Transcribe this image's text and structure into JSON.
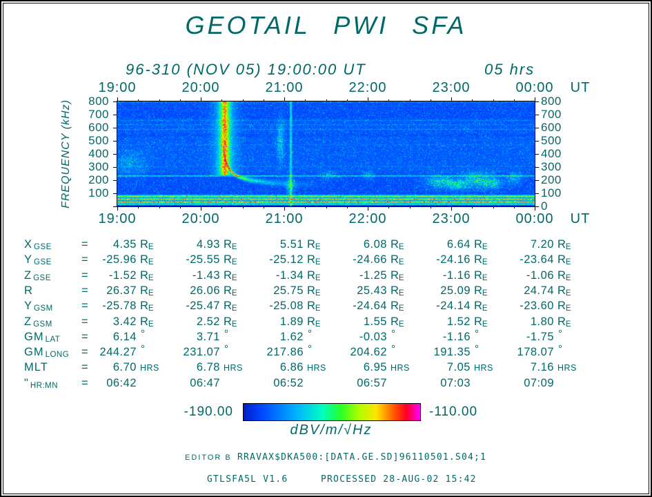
{
  "title": "GEOTAIL PWI SFA",
  "subtitle": {
    "date": "96-310 (NOV 05) 19:00:00 UT",
    "duration": "05 hrs"
  },
  "axes": {
    "time_ticks": [
      "19:00",
      "20:00",
      "21:00",
      "22:00",
      "23:00",
      "00:00"
    ],
    "time_unit": "UT",
    "freq_label": "FREQUENCY (kHz)",
    "freq_ticks_left": [
      "800",
      "700",
      "600",
      "500",
      "400",
      "300",
      "200",
      "100"
    ],
    "freq_ticks_right": [
      "800",
      "700",
      "600",
      "500",
      "400",
      "300",
      "200",
      "100",
      "0"
    ]
  },
  "ephemeris": {
    "unit_symbols": {
      "re_main": "R",
      "re_sub": "E",
      "deg": "°",
      "hrs": "HRS"
    },
    "rows": [
      {
        "label": "X",
        "sub": "GSE",
        "eq": "=",
        "unit": "re",
        "values": [
          "4.35",
          "4.93",
          "5.51",
          "6.08",
          "6.64",
          "7.20"
        ]
      },
      {
        "label": "Y",
        "sub": "GSE",
        "eq": "=",
        "unit": "re",
        "values": [
          "-25.96",
          "-25.55",
          "-25.12",
          "-24.66",
          "-24.16",
          "-23.64"
        ]
      },
      {
        "label": "Z",
        "sub": "GSE",
        "eq": "=",
        "unit": "re",
        "values": [
          "-1.52",
          "-1.43",
          "-1.34",
          "-1.25",
          "-1.16",
          "-1.06"
        ]
      },
      {
        "label": "R",
        "sub": "",
        "eq": "=",
        "unit": "re",
        "values": [
          "26.37",
          "26.06",
          "25.75",
          "25.43",
          "25.09",
          "24.74"
        ]
      },
      {
        "label": "Y",
        "sub": "GSM",
        "eq": "=",
        "unit": "re",
        "values": [
          "-25.78",
          "-25.47",
          "-25.08",
          "-24.64",
          "-24.14",
          "-23.60"
        ]
      },
      {
        "label": "Z",
        "sub": "GSM",
        "eq": "=",
        "unit": "re",
        "values": [
          "3.42",
          "2.52",
          "1.89",
          "1.55",
          "1.52",
          "1.80"
        ]
      },
      {
        "label": "GM",
        "sub": "LAT",
        "eq": "=",
        "unit": "deg",
        "values": [
          "6.14",
          "3.71",
          "1.62",
          "-0.03",
          "-1.16",
          "-1.75"
        ]
      },
      {
        "label": "GM",
        "sub": "LONG",
        "eq": "=",
        "unit": "deg",
        "values": [
          "244.27",
          "231.07",
          "217.86",
          "204.62",
          "191.35",
          "178.07"
        ]
      },
      {
        "label": "MLT",
        "sub": "",
        "eq": "=",
        "unit": "hrs",
        "values": [
          "6.70",
          "6.78",
          "6.86",
          "6.95",
          "7.05",
          "7.16"
        ]
      },
      {
        "label": "\"",
        "sub": "HR:MN",
        "eq": "=",
        "unit": "none",
        "values": [
          "06:42",
          "06:47",
          "06:52",
          "06:57",
          "07:03",
          "07:09"
        ]
      }
    ]
  },
  "colorbar": {
    "min_label": "-190.00",
    "max_label": "-110.00",
    "unit_label": "dBV/m/√Hz",
    "gradient": [
      {
        "p": 0,
        "c": "#0020c8"
      },
      {
        "p": 10,
        "c": "#0044ff"
      },
      {
        "p": 30,
        "c": "#00b4ff"
      },
      {
        "p": 45,
        "c": "#00ffbe"
      },
      {
        "p": 55,
        "c": "#28ff28"
      },
      {
        "p": 65,
        "c": "#aaff00"
      },
      {
        "p": 75,
        "c": "#ffe600"
      },
      {
        "p": 85,
        "c": "#ff5a00"
      },
      {
        "p": 92,
        "c": "#ff001e"
      },
      {
        "p": 100,
        "c": "#ff00ff"
      }
    ]
  },
  "footer": {
    "editor": "EDITOR B",
    "file": "RRAVAX$DKA500:[DATA.GE.SD]96110501.S04;1",
    "program": "GTLSFA5L V1.6",
    "processed": "PROCESSED 28-AUG-02  15:42"
  },
  "chart_data": {
    "type": "heatmap",
    "title": "GEOTAIL PWI SFA",
    "x": {
      "label": "UT",
      "ticks": [
        "19:00",
        "20:00",
        "21:00",
        "22:00",
        "23:00",
        "00:00"
      ],
      "start": "19:00",
      "end": "00:00",
      "span_hours": 5
    },
    "y": {
      "label": "FREQUENCY (kHz)",
      "min": 0,
      "max": 800,
      "tick_step": 100
    },
    "z": {
      "label": "dBV/m/√Hz",
      "min": -190,
      "max": -110,
      "colormap": "rainbow"
    },
    "features": [
      {
        "name": "low-frequency-banded-emission",
        "time_range": [
          "19:00",
          "00:00"
        ],
        "freq_range_khz": [
          10,
          90
        ],
        "intensity": "strong"
      },
      {
        "name": "narrowband-continuum-line",
        "time_range": [
          "19:00",
          "00:00"
        ],
        "freq_khz": 232,
        "intensity": "moderate"
      },
      {
        "name": "intense-dispersive-burst",
        "time": "20:17",
        "freq_range_khz": [
          250,
          800
        ],
        "tail": "decays to ~160 kHz by ~21:10",
        "intensity": "very strong"
      },
      {
        "name": "narrow-vertical-enhancement",
        "time": "21:04",
        "freq_range_khz": [
          0,
          800
        ],
        "intensity": "moderate"
      },
      {
        "name": "patchy-emission",
        "time_range": [
          "22:45",
          "23:50"
        ],
        "freq_range_khz": [
          120,
          300
        ],
        "intensity": "weak-moderate"
      },
      {
        "name": "background",
        "desc": "blue noise background with dense cyan speckle and weak diffuse bands 250-650 kHz"
      }
    ],
    "render": {
      "seed": 20021105,
      "hlines": [
        [
          232,
          4,
          0.3
        ],
        [
          795,
          3,
          0.12
        ],
        [
          588,
          3,
          0.1
        ],
        [
          622,
          3,
          0.09
        ],
        [
          655,
          2,
          0.07
        ],
        [
          470,
          3,
          0.05
        ],
        [
          305,
          3,
          0.06
        ],
        [
          77,
          6,
          0.35
        ],
        [
          55,
          5,
          0.42
        ],
        [
          33,
          5,
          0.48
        ],
        [
          16,
          4,
          0.22
        ]
      ],
      "burst": {
        "hour": 1.285,
        "col_amp": 0.5,
        "tail_asymptote": 152,
        "tail_k": 2200
      },
      "vline_hour": 2.075,
      "blobs": [
        [
          3.85,
          190,
          18,
          45,
          0.22
        ],
        [
          4.05,
          165,
          14,
          35,
          0.25
        ],
        [
          4.3,
          200,
          22,
          55,
          0.25
        ],
        [
          4.5,
          175,
          12,
          35,
          0.22
        ],
        [
          4.75,
          210,
          10,
          40,
          0.18
        ],
        [
          0.15,
          330,
          20,
          90,
          0.1
        ],
        [
          1.95,
          500,
          5,
          160,
          0.18
        ],
        [
          2.07,
          160,
          6,
          60,
          0.2
        ],
        [
          2.55,
          235,
          10,
          25,
          0.12
        ],
        [
          3.0,
          240,
          8,
          30,
          0.12
        ]
      ]
    }
  }
}
